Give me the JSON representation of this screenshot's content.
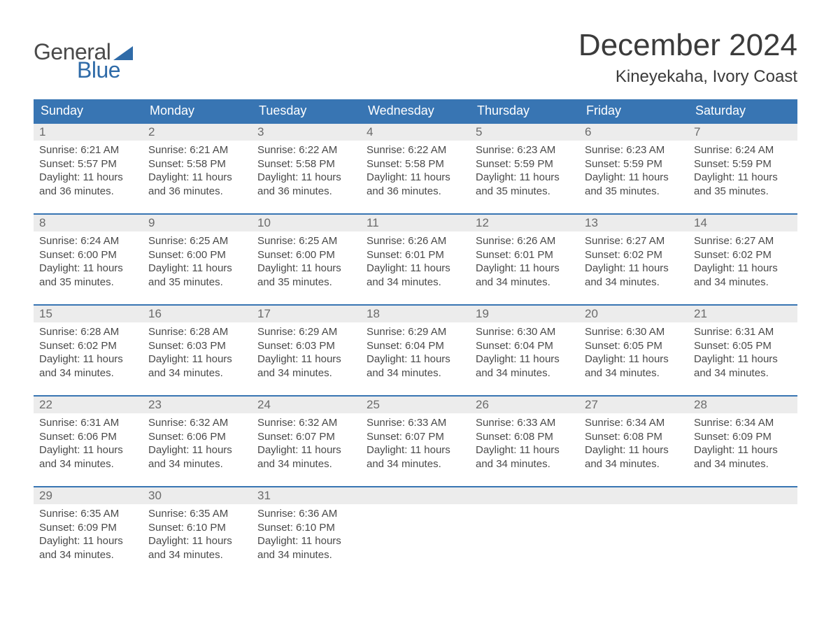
{
  "brand": {
    "word1": "General",
    "word2": "Blue",
    "word1_color": "#4a4a4a",
    "word2_color": "#2f6ba8",
    "accent_color": "#2f6ba8"
  },
  "title": "December 2024",
  "location": "Kineyekaha, Ivory Coast",
  "colors": {
    "header_bg": "#3875b3",
    "header_text": "#ffffff",
    "daynum_bg": "#ececec",
    "text": "#4a4a4a",
    "week_border": "#3875b3",
    "background": "#ffffff"
  },
  "fonts": {
    "title_size_pt": 33,
    "location_size_pt": 18,
    "header_size_pt": 14,
    "body_size_pt": 11
  },
  "day_headers": [
    "Sunday",
    "Monday",
    "Tuesday",
    "Wednesday",
    "Thursday",
    "Friday",
    "Saturday"
  ],
  "weeks": [
    [
      {
        "n": "1",
        "sunrise": "Sunrise: 6:21 AM",
        "sunset": "Sunset: 5:57 PM",
        "d1": "Daylight: 11 hours",
        "d2": "and 36 minutes."
      },
      {
        "n": "2",
        "sunrise": "Sunrise: 6:21 AM",
        "sunset": "Sunset: 5:58 PM",
        "d1": "Daylight: 11 hours",
        "d2": "and 36 minutes."
      },
      {
        "n": "3",
        "sunrise": "Sunrise: 6:22 AM",
        "sunset": "Sunset: 5:58 PM",
        "d1": "Daylight: 11 hours",
        "d2": "and 36 minutes."
      },
      {
        "n": "4",
        "sunrise": "Sunrise: 6:22 AM",
        "sunset": "Sunset: 5:58 PM",
        "d1": "Daylight: 11 hours",
        "d2": "and 36 minutes."
      },
      {
        "n": "5",
        "sunrise": "Sunrise: 6:23 AM",
        "sunset": "Sunset: 5:59 PM",
        "d1": "Daylight: 11 hours",
        "d2": "and 35 minutes."
      },
      {
        "n": "6",
        "sunrise": "Sunrise: 6:23 AM",
        "sunset": "Sunset: 5:59 PM",
        "d1": "Daylight: 11 hours",
        "d2": "and 35 minutes."
      },
      {
        "n": "7",
        "sunrise": "Sunrise: 6:24 AM",
        "sunset": "Sunset: 5:59 PM",
        "d1": "Daylight: 11 hours",
        "d2": "and 35 minutes."
      }
    ],
    [
      {
        "n": "8",
        "sunrise": "Sunrise: 6:24 AM",
        "sunset": "Sunset: 6:00 PM",
        "d1": "Daylight: 11 hours",
        "d2": "and 35 minutes."
      },
      {
        "n": "9",
        "sunrise": "Sunrise: 6:25 AM",
        "sunset": "Sunset: 6:00 PM",
        "d1": "Daylight: 11 hours",
        "d2": "and 35 minutes."
      },
      {
        "n": "10",
        "sunrise": "Sunrise: 6:25 AM",
        "sunset": "Sunset: 6:00 PM",
        "d1": "Daylight: 11 hours",
        "d2": "and 35 minutes."
      },
      {
        "n": "11",
        "sunrise": "Sunrise: 6:26 AM",
        "sunset": "Sunset: 6:01 PM",
        "d1": "Daylight: 11 hours",
        "d2": "and 34 minutes."
      },
      {
        "n": "12",
        "sunrise": "Sunrise: 6:26 AM",
        "sunset": "Sunset: 6:01 PM",
        "d1": "Daylight: 11 hours",
        "d2": "and 34 minutes."
      },
      {
        "n": "13",
        "sunrise": "Sunrise: 6:27 AM",
        "sunset": "Sunset: 6:02 PM",
        "d1": "Daylight: 11 hours",
        "d2": "and 34 minutes."
      },
      {
        "n": "14",
        "sunrise": "Sunrise: 6:27 AM",
        "sunset": "Sunset: 6:02 PM",
        "d1": "Daylight: 11 hours",
        "d2": "and 34 minutes."
      }
    ],
    [
      {
        "n": "15",
        "sunrise": "Sunrise: 6:28 AM",
        "sunset": "Sunset: 6:02 PM",
        "d1": "Daylight: 11 hours",
        "d2": "and 34 minutes."
      },
      {
        "n": "16",
        "sunrise": "Sunrise: 6:28 AM",
        "sunset": "Sunset: 6:03 PM",
        "d1": "Daylight: 11 hours",
        "d2": "and 34 minutes."
      },
      {
        "n": "17",
        "sunrise": "Sunrise: 6:29 AM",
        "sunset": "Sunset: 6:03 PM",
        "d1": "Daylight: 11 hours",
        "d2": "and 34 minutes."
      },
      {
        "n": "18",
        "sunrise": "Sunrise: 6:29 AM",
        "sunset": "Sunset: 6:04 PM",
        "d1": "Daylight: 11 hours",
        "d2": "and 34 minutes."
      },
      {
        "n": "19",
        "sunrise": "Sunrise: 6:30 AM",
        "sunset": "Sunset: 6:04 PM",
        "d1": "Daylight: 11 hours",
        "d2": "and 34 minutes."
      },
      {
        "n": "20",
        "sunrise": "Sunrise: 6:30 AM",
        "sunset": "Sunset: 6:05 PM",
        "d1": "Daylight: 11 hours",
        "d2": "and 34 minutes."
      },
      {
        "n": "21",
        "sunrise": "Sunrise: 6:31 AM",
        "sunset": "Sunset: 6:05 PM",
        "d1": "Daylight: 11 hours",
        "d2": "and 34 minutes."
      }
    ],
    [
      {
        "n": "22",
        "sunrise": "Sunrise: 6:31 AM",
        "sunset": "Sunset: 6:06 PM",
        "d1": "Daylight: 11 hours",
        "d2": "and 34 minutes."
      },
      {
        "n": "23",
        "sunrise": "Sunrise: 6:32 AM",
        "sunset": "Sunset: 6:06 PM",
        "d1": "Daylight: 11 hours",
        "d2": "and 34 minutes."
      },
      {
        "n": "24",
        "sunrise": "Sunrise: 6:32 AM",
        "sunset": "Sunset: 6:07 PM",
        "d1": "Daylight: 11 hours",
        "d2": "and 34 minutes."
      },
      {
        "n": "25",
        "sunrise": "Sunrise: 6:33 AM",
        "sunset": "Sunset: 6:07 PM",
        "d1": "Daylight: 11 hours",
        "d2": "and 34 minutes."
      },
      {
        "n": "26",
        "sunrise": "Sunrise: 6:33 AM",
        "sunset": "Sunset: 6:08 PM",
        "d1": "Daylight: 11 hours",
        "d2": "and 34 minutes."
      },
      {
        "n": "27",
        "sunrise": "Sunrise: 6:34 AM",
        "sunset": "Sunset: 6:08 PM",
        "d1": "Daylight: 11 hours",
        "d2": "and 34 minutes."
      },
      {
        "n": "28",
        "sunrise": "Sunrise: 6:34 AM",
        "sunset": "Sunset: 6:09 PM",
        "d1": "Daylight: 11 hours",
        "d2": "and 34 minutes."
      }
    ],
    [
      {
        "n": "29",
        "sunrise": "Sunrise: 6:35 AM",
        "sunset": "Sunset: 6:09 PM",
        "d1": "Daylight: 11 hours",
        "d2": "and 34 minutes."
      },
      {
        "n": "30",
        "sunrise": "Sunrise: 6:35 AM",
        "sunset": "Sunset: 6:10 PM",
        "d1": "Daylight: 11 hours",
        "d2": "and 34 minutes."
      },
      {
        "n": "31",
        "sunrise": "Sunrise: 6:36 AM",
        "sunset": "Sunset: 6:10 PM",
        "d1": "Daylight: 11 hours",
        "d2": "and 34 minutes."
      },
      {
        "empty": true
      },
      {
        "empty": true
      },
      {
        "empty": true
      },
      {
        "empty": true
      }
    ]
  ]
}
